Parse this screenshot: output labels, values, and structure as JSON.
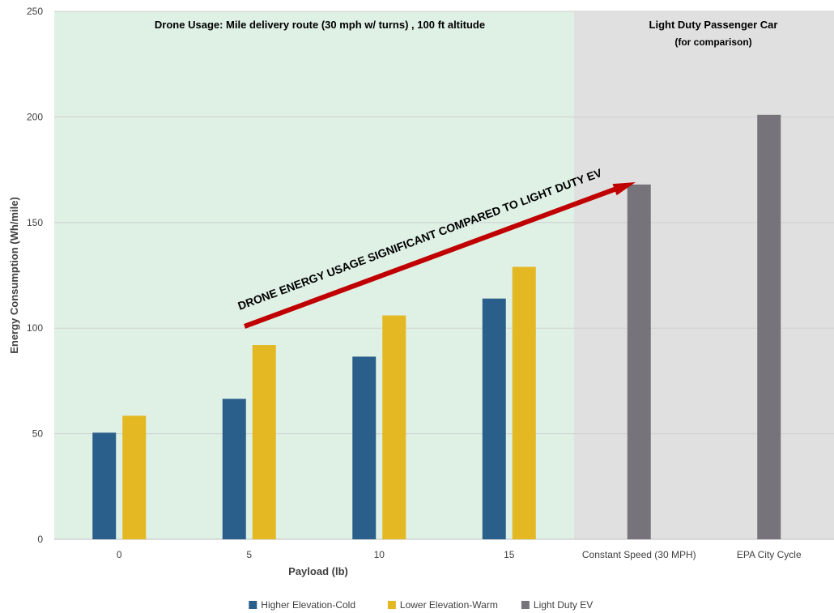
{
  "chart_data": {
    "type": "bar",
    "categories": [
      "0",
      "5",
      "10",
      "15",
      "Constant Speed (30 MPH)",
      "EPA City Cycle"
    ],
    "series": [
      {
        "name": "Higher Elevation-Cold",
        "color": "#2a5f8c",
        "values": [
          50.5,
          66.5,
          86.5,
          114,
          null,
          null
        ]
      },
      {
        "name": "Lower Elevation-Warm",
        "color": "#e3b823",
        "values": [
          58.5,
          92,
          106,
          129,
          null,
          null
        ]
      },
      {
        "name": "Light Duty EV",
        "color": "#76747a",
        "values": [
          null,
          null,
          null,
          null,
          168,
          201
        ]
      }
    ],
    "xlabel": "Payload (lb)",
    "ylabel": "Energy Consumption (Wh/mile)",
    "ylim": [
      0,
      250
    ],
    "yticks": [
      0,
      50,
      100,
      150,
      200,
      250
    ],
    "grid": true,
    "legend_position": "bottom",
    "regions": [
      {
        "title": "Drone Usage: Mile delivery route (30 mph w/ turns) , 100 ft altitude",
        "subtitle": "",
        "color": "#dff0e5"
      },
      {
        "title": "Light Duty Passenger Car",
        "subtitle": "(for comparison)",
        "color": "#e0e0e0"
      }
    ],
    "annotation": {
      "text": "DRONE ENERGY USAGE SIGNIFICANT COMPARED TO LIGHT DUTY EV",
      "arrow_color": "#c00000"
    }
  }
}
